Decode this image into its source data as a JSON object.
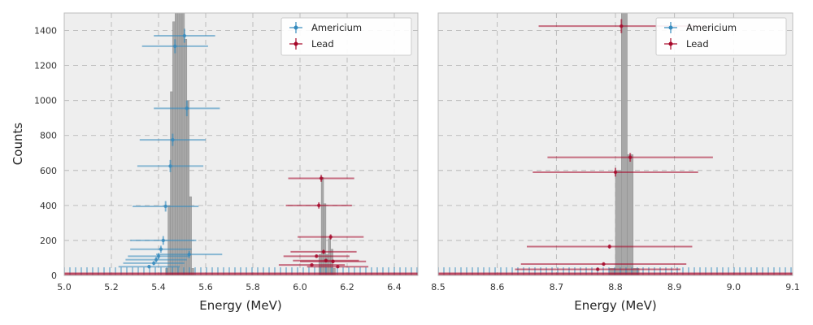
{
  "colors": {
    "americium": "#348abd",
    "lead": "#a60628",
    "hist": "#a8a8a8",
    "axes_bg": "#eeeeee",
    "grid": "#b0b0b0"
  },
  "chart_data": [
    {
      "type": "scatter",
      "panel": "left",
      "xlabel": "Energy (MeV)",
      "ylabel": "Counts",
      "xlim": [
        5.0,
        6.5
      ],
      "ylim": [
        0,
        1500
      ],
      "xticks": [
        "5.0",
        "5.2",
        "5.4",
        "5.6",
        "5.8",
        "6.0",
        "6.2",
        "6.4"
      ],
      "yticks": [
        "0",
        "200",
        "400",
        "600",
        "800",
        "1000",
        "1200",
        "1400"
      ],
      "grid": true,
      "legend_position": "top-right",
      "legend": [
        "Americium",
        "Lead"
      ],
      "series": [
        {
          "name": "Americium",
          "points": [
            {
              "x": 5.51,
              "y": 1370,
              "xerr": 0.13,
              "yerr": 40
            },
            {
              "x": 5.47,
              "y": 1310,
              "xerr": 0.14,
              "yerr": 40
            },
            {
              "x": 5.52,
              "y": 955,
              "xerr": 0.14,
              "yerr": 45
            },
            {
              "x": 5.46,
              "y": 775,
              "xerr": 0.14,
              "yerr": 35
            },
            {
              "x": 5.45,
              "y": 625,
              "xerr": 0.14,
              "yerr": 35
            },
            {
              "x": 5.43,
              "y": 395,
              "xerr": 0.14,
              "yerr": 30
            },
            {
              "x": 5.42,
              "y": 200,
              "xerr": 0.14,
              "yerr": 25
            },
            {
              "x": 5.41,
              "y": 150,
              "xerr": 0.13,
              "yerr": 20
            },
            {
              "x": 5.53,
              "y": 120,
              "xerr": 0.14,
              "yerr": 20
            },
            {
              "x": 5.4,
              "y": 110,
              "xerr": 0.13,
              "yerr": 18
            },
            {
              "x": 5.39,
              "y": 90,
              "xerr": 0.13,
              "yerr": 15
            },
            {
              "x": 5.38,
              "y": 70,
              "xerr": 0.13,
              "yerr": 12
            },
            {
              "x": 5.36,
              "y": 50,
              "xerr": 0.13,
              "yerr": 10
            }
          ]
        },
        {
          "name": "Lead",
          "points": [
            {
              "x": 6.09,
              "y": 555,
              "xerr": 0.14,
              "yerr": 20
            },
            {
              "x": 6.08,
              "y": 400,
              "xerr": 0.14,
              "yerr": 18
            },
            {
              "x": 6.13,
              "y": 220,
              "xerr": 0.14,
              "yerr": 15
            },
            {
              "x": 6.1,
              "y": 135,
              "xerr": 0.14,
              "yerr": 12
            },
            {
              "x": 6.07,
              "y": 110,
              "xerr": 0.14,
              "yerr": 10
            },
            {
              "x": 6.11,
              "y": 85,
              "xerr": 0.14,
              "yerr": 10
            },
            {
              "x": 6.14,
              "y": 80,
              "xerr": 0.14,
              "yerr": 10
            },
            {
              "x": 6.05,
              "y": 60,
              "xerr": 0.14,
              "yerr": 8
            },
            {
              "x": 6.16,
              "y": 50,
              "xerr": 0.13,
              "yerr": 8
            }
          ]
        }
      ],
      "histogram": {
        "bin_width": 0.01,
        "bars": [
          {
            "x": 5.43,
            "h": 40
          },
          {
            "x": 5.44,
            "h": 400
          },
          {
            "x": 5.45,
            "h": 1050
          },
          {
            "x": 5.46,
            "h": 1450
          },
          {
            "x": 5.47,
            "h": 1500
          },
          {
            "x": 5.48,
            "h": 1500
          },
          {
            "x": 5.49,
            "h": 1500
          },
          {
            "x": 5.5,
            "h": 1500
          },
          {
            "x": 5.51,
            "h": 1350
          },
          {
            "x": 5.52,
            "h": 1000
          },
          {
            "x": 5.53,
            "h": 450
          },
          {
            "x": 5.54,
            "h": 40
          },
          {
            "x": 6.08,
            "h": 120
          },
          {
            "x": 6.09,
            "h": 560
          },
          {
            "x": 6.1,
            "h": 410
          },
          {
            "x": 6.11,
            "h": 120
          },
          {
            "x": 6.12,
            "h": 210
          },
          {
            "x": 6.13,
            "h": 150
          },
          {
            "x": 6.14,
            "h": 40
          }
        ]
      }
    },
    {
      "type": "scatter",
      "panel": "right",
      "xlabel": "Energy (MeV)",
      "ylabel": "",
      "xlim": [
        8.5,
        9.1
      ],
      "ylim": [
        0,
        1500
      ],
      "xticks": [
        "8.5",
        "8.6",
        "8.7",
        "8.8",
        "8.9",
        "9.0",
        "9.1"
      ],
      "yticks": [],
      "grid": true,
      "legend_position": "top-right",
      "legend": [
        "Americium",
        "Lead"
      ],
      "series": [
        {
          "name": "Lead",
          "points": [
            {
              "x": 8.81,
              "y": 1425,
              "xerr": 0.14,
              "yerr": 40
            },
            {
              "x": 8.825,
              "y": 675,
              "xerr": 0.14,
              "yerr": 25
            },
            {
              "x": 8.8,
              "y": 590,
              "xerr": 0.14,
              "yerr": 25
            },
            {
              "x": 8.79,
              "y": 165,
              "xerr": 0.14,
              "yerr": 12
            },
            {
              "x": 8.78,
              "y": 65,
              "xerr": 0.14,
              "yerr": 10
            },
            {
              "x": 8.77,
              "y": 35,
              "xerr": 0.14,
              "yerr": 8
            }
          ]
        }
      ],
      "histogram": {
        "bin_width": 0.01,
        "bars": [
          {
            "x": 8.79,
            "h": 40
          },
          {
            "x": 8.8,
            "h": 600
          },
          {
            "x": 8.81,
            "h": 1500
          },
          {
            "x": 8.82,
            "h": 690
          },
          {
            "x": 8.83,
            "h": 40
          }
        ]
      }
    }
  ]
}
